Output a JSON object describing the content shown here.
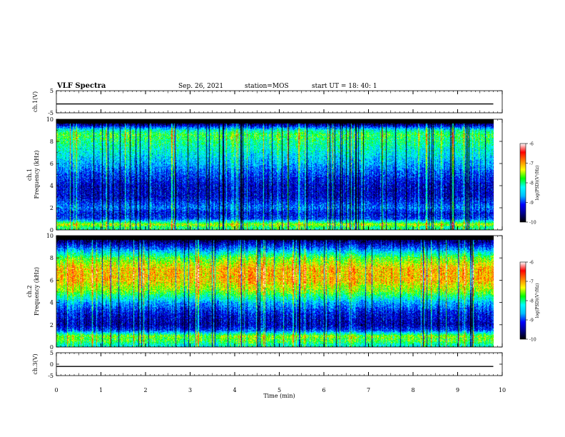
{
  "header": {
    "title": "VLF Spectra",
    "date": "Sep. 26, 2021",
    "station": "station=MOS",
    "start": "start  UT =  18: 40: 1"
  },
  "colormap": {
    "stops": [
      "#000000",
      "#00008b",
      "#0000ff",
      "#00bfff",
      "#00ffff",
      "#00ff00",
      "#ffff00",
      "#ff8000",
      "#ff0000",
      "#ffffff"
    ]
  },
  "chart_data": [
    {
      "type": "line",
      "panel": "ch.1(V)",
      "ylabel": "ch.1(V)",
      "ylim": [
        -5,
        5
      ],
      "yticks": [
        "5",
        "-5"
      ],
      "x": [
        0,
        1,
        2,
        3,
        4,
        5,
        6,
        7,
        8,
        9,
        9.8
      ],
      "values": [
        -1.0,
        -1.0,
        -1.0,
        -1.0,
        -1.0,
        -1.0,
        -1.0,
        -1.0,
        -1.0,
        -1.0,
        -1.0
      ],
      "xlim": [
        0,
        10
      ]
    },
    {
      "type": "heatmap",
      "panel": "ch.1 spectrogram",
      "ylabel": "ch.1\nFrequency (kHz)",
      "ylim": [
        0,
        10
      ],
      "yticks": [
        "0",
        "2",
        "4",
        "6",
        "8",
        "10"
      ],
      "xlim": [
        0,
        10
      ],
      "data_xmax": 9.8,
      "colorbar": {
        "label": "log(PSD)(V²/Hz)",
        "range": [
          -10,
          -6
        ],
        "ticks": [
          "-6",
          "-7",
          "-8",
          "-9",
          "-10"
        ]
      },
      "profile_khz": [
        0.2,
        0.5,
        1.0,
        1.5,
        2.0,
        3.0,
        4.0,
        5.0,
        6.0,
        7.0,
        8.0,
        8.6,
        9.0,
        9.5,
        10.0
      ],
      "profile_log_psd": [
        -8.0,
        -7.4,
        -9.0,
        -9.2,
        -8.8,
        -9.3,
        -9.3,
        -9.0,
        -8.6,
        -8.3,
        -8.0,
        -7.8,
        -8.2,
        -9.5,
        -10.0
      ]
    },
    {
      "type": "heatmap",
      "panel": "ch.2 spectrogram",
      "ylabel": "ch.2\nFrequency (kHz)",
      "ylim": [
        0,
        10
      ],
      "yticks": [
        "0",
        "2",
        "4",
        "6",
        "8",
        "10"
      ],
      "xlim": [
        0,
        10
      ],
      "data_xmax": 9.8,
      "colorbar": {
        "label": "log(PSD)(V²/Hz)",
        "range": [
          -10,
          -6
        ],
        "ticks": [
          "-6",
          "-7",
          "-8",
          "-9",
          "-10"
        ]
      },
      "profile_khz": [
        0.2,
        0.5,
        1.0,
        1.5,
        2.0,
        3.0,
        4.0,
        5.0,
        6.0,
        7.0,
        8.0,
        8.6,
        9.0,
        9.5,
        10.0
      ],
      "profile_log_psd": [
        -8.2,
        -7.8,
        -7.6,
        -9.0,
        -9.4,
        -9.2,
        -8.6,
        -7.6,
        -7.1,
        -7.1,
        -7.7,
        -8.5,
        -9.0,
        -9.6,
        -10.0
      ]
    },
    {
      "type": "line",
      "panel": "ch.3(V)",
      "ylabel": "ch.3(V)",
      "ylim": [
        -5,
        5
      ],
      "yticks": [
        "5",
        "0",
        "-5"
      ],
      "x": [
        0,
        1,
        2,
        3,
        4,
        5,
        6,
        7,
        8,
        9,
        9.8
      ],
      "values": [
        -1.0,
        -1.0,
        -1.0,
        -1.0,
        -1.0,
        -1.0,
        -1.0,
        -1.0,
        -1.0,
        -1.0,
        -1.0
      ],
      "xlim": [
        0,
        10
      ]
    }
  ],
  "xaxis": {
    "label": "Time  (min)",
    "ticks": [
      "0",
      "1",
      "2",
      "3",
      "4",
      "5",
      "6",
      "7",
      "8",
      "9",
      "10"
    ]
  }
}
